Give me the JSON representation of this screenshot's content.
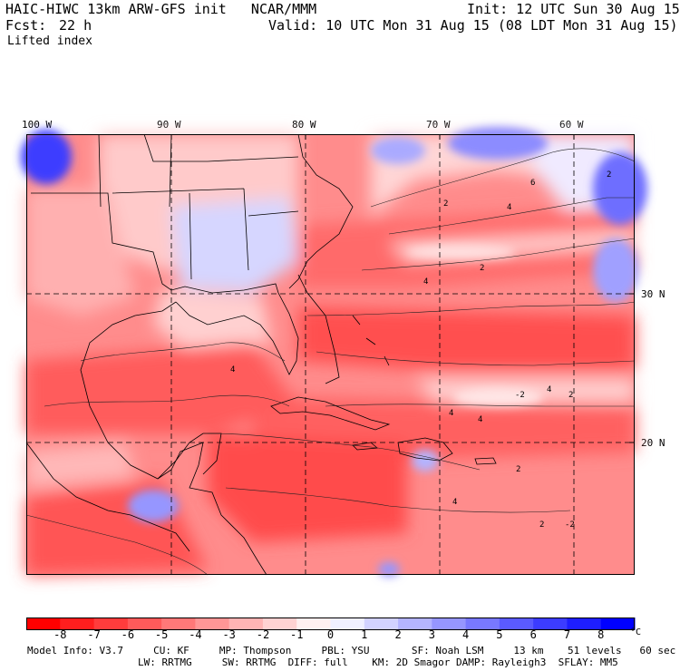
{
  "header": {
    "model_title": "HAIC-HIWC 13km ARW-GFS init   NCAR/MMM",
    "init": "Init: 12 UTC Sun 30 Aug 15",
    "fcst_label": "Fcst:",
    "fcst_value": "22 h",
    "valid": "Valid: 10 UTC Mon 31 Aug 15 (08 LDT Mon 31 Aug 15)",
    "field": "Lifted index"
  },
  "axes": {
    "lon_labels": [
      "100 W",
      "90 W",
      "80 W",
      "70 W",
      "60 W"
    ],
    "lat_labels": [
      "30 N",
      "20 N"
    ]
  },
  "contour_labels": [
    "2",
    "4",
    "6",
    "2",
    "4",
    "2",
    "4",
    "-2",
    "4",
    "2",
    "4",
    "4",
    "2",
    "-2",
    "2",
    "4"
  ],
  "colorbar": {
    "labels": [
      "-8",
      "-7",
      "-6",
      "-5",
      "-4",
      "-3",
      "-2",
      "-1",
      "0",
      "1",
      "2",
      "3",
      "4",
      "5",
      "6",
      "7",
      "8"
    ],
    "unit": "°C",
    "colors": [
      "#ff0000",
      "#ff1e1e",
      "#ff3c3c",
      "#ff5a5a",
      "#ff7878",
      "#ff9696",
      "#ffb4b4",
      "#ffd2d2",
      "#fff0f0",
      "#f0f0ff",
      "#d2d2ff",
      "#b4b4ff",
      "#9696ff",
      "#7878ff",
      "#5a5aff",
      "#3c3cff",
      "#1e1eff",
      "#0000ff"
    ]
  },
  "footer": {
    "line1": "Model Info: V3.7     CU: KF     MP: Thompson     PBL: YSU       SF: Noah LSM     13 km    51 levels   60 sec",
    "line2": "LW: RRTMG     SW: RRTMG  DIFF: full    KM: 2D Smagor DAMP: Rayleigh3  SFLAY: MM5"
  }
}
